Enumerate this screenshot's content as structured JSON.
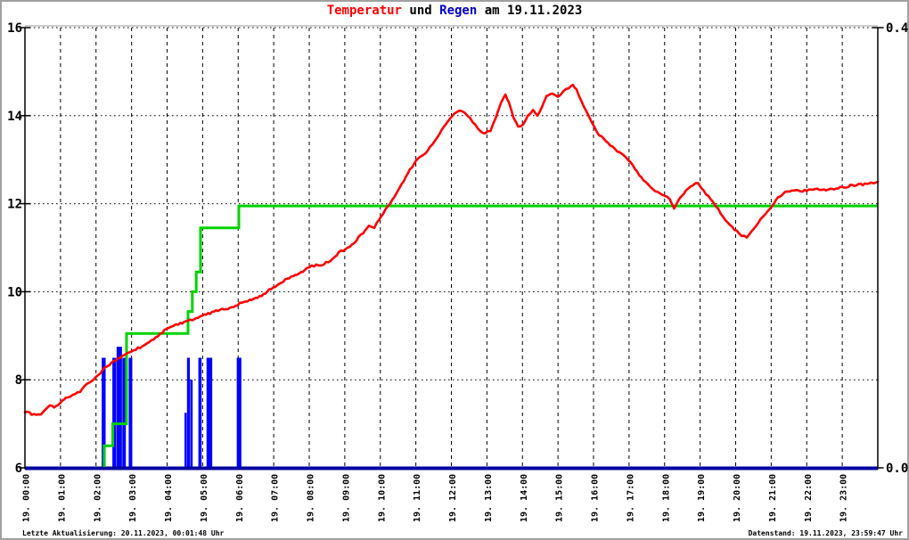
{
  "title_parts": [
    {
      "text": "Temperatur",
      "color": "#ff0000"
    },
    {
      "text": " und ",
      "color": "#000000"
    },
    {
      "text": "Regen",
      "color": "#0000cc"
    },
    {
      "text": " am 19.11.2023",
      "color": "#000000"
    }
  ],
  "footer": {
    "left": "Letzte Aktualisierung: 20.11.2023, 00:01:48 Uhr",
    "right": "Datenstand: 19.11.2023, 23:59:47 Uhr"
  },
  "chart_data": {
    "type": "line",
    "title": "Temperatur und Regen am 19.11.2023",
    "grid": true,
    "left_axis": {
      "range": [
        6,
        16
      ],
      "ticks": [
        {
          "label": "16",
          "value": 16
        },
        {
          "label": "14",
          "value": 14
        },
        {
          "label": "12",
          "value": 12
        },
        {
          "label": "10",
          "value": 10
        },
        {
          "label": "8",
          "value": 8
        },
        {
          "label": "6",
          "value": 6
        }
      ]
    },
    "right_axis": {
      "range": [
        0.0,
        0.4
      ],
      "ticks": [
        {
          "label": "0.4",
          "value": 0.4
        },
        {
          "label": "0.0",
          "value": 0.0
        }
      ]
    },
    "x_axis": {
      "range_hours": [
        0,
        24
      ],
      "tick_labels": [
        "19. 00:00",
        "19. 01:00",
        "19. 02:00",
        "19. 03:00",
        "19. 04:00",
        "19. 05:00",
        "19. 06:00",
        "19. 07:00",
        "19. 08:00",
        "19. 09:00",
        "19. 10:00",
        "19. 11:00",
        "19. 12:00",
        "19. 13:00",
        "19. 14:00",
        "19. 15:00",
        "19. 16:00",
        "19. 17:00",
        "19. 18:00",
        "19. 19:00",
        "19. 20:00",
        "19. 21:00",
        "19. 22:00",
        "19. 23:00"
      ]
    },
    "colors": {
      "temperature": "#ff0000",
      "rain_bars": "#0000ff",
      "rain_sum": "#00d300",
      "baseline": "#0000a0",
      "grid": "#000000",
      "border": "#a0a0a0",
      "top_line": "#b0b0b0"
    },
    "series": {
      "temperature": {
        "axis": "left",
        "points": [
          [
            0,
            7.26
          ],
          [
            0.25,
            7.22
          ],
          [
            0.45,
            7.21
          ],
          [
            0.55,
            7.3
          ],
          [
            0.7,
            7.42
          ],
          [
            0.82,
            7.37
          ],
          [
            1.0,
            7.48
          ],
          [
            1.1,
            7.55
          ],
          [
            1.2,
            7.6
          ],
          [
            1.35,
            7.66
          ],
          [
            1.55,
            7.72
          ],
          [
            1.68,
            7.86
          ],
          [
            1.8,
            7.93
          ],
          [
            1.93,
            8.0
          ],
          [
            2.05,
            8.1
          ],
          [
            2.2,
            8.24
          ],
          [
            2.3,
            8.3
          ],
          [
            2.45,
            8.4
          ],
          [
            2.55,
            8.43
          ],
          [
            2.68,
            8.5
          ],
          [
            2.8,
            8.56
          ],
          [
            2.93,
            8.62
          ],
          [
            3.06,
            8.67
          ],
          [
            3.3,
            8.76
          ],
          [
            3.56,
            8.9
          ],
          [
            3.81,
            9.05
          ],
          [
            4.1,
            9.2
          ],
          [
            4.31,
            9.25
          ],
          [
            4.6,
            9.35
          ],
          [
            4.82,
            9.4
          ],
          [
            5.1,
            9.48
          ],
          [
            5.32,
            9.55
          ],
          [
            5.6,
            9.6
          ],
          [
            5.82,
            9.65
          ],
          [
            6.1,
            9.75
          ],
          [
            6.32,
            9.82
          ],
          [
            6.6,
            9.9
          ],
          [
            6.82,
            10.0
          ],
          [
            7.1,
            10.15
          ],
          [
            7.32,
            10.28
          ],
          [
            7.6,
            10.38
          ],
          [
            7.82,
            10.45
          ],
          [
            8.0,
            10.55
          ],
          [
            8.2,
            10.62
          ],
          [
            8.35,
            10.6
          ],
          [
            8.6,
            10.7
          ],
          [
            8.83,
            10.9
          ],
          [
            9.08,
            11.0
          ],
          [
            9.33,
            11.16
          ],
          [
            9.45,
            11.3
          ],
          [
            9.58,
            11.4
          ],
          [
            9.68,
            11.5
          ],
          [
            9.83,
            11.45
          ],
          [
            9.96,
            11.63
          ],
          [
            10.08,
            11.77
          ],
          [
            10.21,
            11.94
          ],
          [
            10.33,
            12.08
          ],
          [
            10.6,
            12.45
          ],
          [
            10.83,
            12.78
          ],
          [
            11.08,
            13.04
          ],
          [
            11.33,
            13.2
          ],
          [
            11.6,
            13.5
          ],
          [
            11.84,
            13.8
          ],
          [
            12.0,
            13.97
          ],
          [
            12.15,
            14.08
          ],
          [
            12.3,
            14.1
          ],
          [
            12.45,
            14.0
          ],
          [
            12.6,
            13.85
          ],
          [
            12.75,
            13.7
          ],
          [
            12.95,
            13.6
          ],
          [
            13.1,
            13.65
          ],
          [
            13.25,
            13.95
          ],
          [
            13.4,
            14.3
          ],
          [
            13.52,
            14.48
          ],
          [
            13.62,
            14.3
          ],
          [
            13.75,
            13.95
          ],
          [
            13.88,
            13.75
          ],
          [
            14.02,
            13.8
          ],
          [
            14.15,
            14.0
          ],
          [
            14.3,
            14.13
          ],
          [
            14.42,
            14.0
          ],
          [
            14.55,
            14.2
          ],
          [
            14.68,
            14.45
          ],
          [
            14.85,
            14.5
          ],
          [
            15.0,
            14.43
          ],
          [
            15.15,
            14.55
          ],
          [
            15.3,
            14.62
          ],
          [
            15.42,
            14.7
          ],
          [
            15.52,
            14.6
          ],
          [
            15.65,
            14.35
          ],
          [
            15.8,
            14.1
          ],
          [
            15.95,
            13.85
          ],
          [
            16.1,
            13.62
          ],
          [
            16.35,
            13.42
          ],
          [
            16.6,
            13.25
          ],
          [
            16.85,
            13.1
          ],
          [
            17.1,
            12.88
          ],
          [
            17.35,
            12.6
          ],
          [
            17.6,
            12.38
          ],
          [
            17.8,
            12.27
          ],
          [
            18.0,
            12.18
          ],
          [
            18.15,
            12.1
          ],
          [
            18.27,
            11.89
          ],
          [
            18.42,
            12.12
          ],
          [
            18.6,
            12.3
          ],
          [
            18.8,
            12.42
          ],
          [
            18.94,
            12.47
          ],
          [
            19.1,
            12.3
          ],
          [
            19.3,
            12.1
          ],
          [
            19.44,
            11.94
          ],
          [
            19.65,
            11.7
          ],
          [
            19.9,
            11.48
          ],
          [
            20.1,
            11.32
          ],
          [
            20.31,
            11.23
          ],
          [
            20.5,
            11.42
          ],
          [
            20.7,
            11.65
          ],
          [
            20.9,
            11.83
          ],
          [
            21.01,
            11.93
          ],
          [
            21.2,
            12.15
          ],
          [
            21.45,
            12.28
          ],
          [
            21.7,
            12.31
          ],
          [
            22.0,
            12.29
          ],
          [
            22.3,
            12.34
          ],
          [
            22.6,
            12.32
          ],
          [
            23.0,
            12.38
          ],
          [
            23.4,
            12.42
          ],
          [
            23.75,
            12.46
          ],
          [
            24.0,
            12.5
          ]
        ]
      },
      "rain_bars": {
        "axis": "right",
        "bars": [
          [
            2.16,
            2.27,
            0.1
          ],
          [
            2.46,
            2.57,
            0.1
          ],
          [
            2.58,
            2.73,
            0.11
          ],
          [
            2.74,
            2.84,
            0.1
          ],
          [
            2.92,
            3.02,
            0.1
          ],
          [
            4.49,
            4.55,
            0.05
          ],
          [
            4.56,
            4.64,
            0.1
          ],
          [
            4.65,
            4.72,
            0.08
          ],
          [
            4.88,
            4.97,
            0.1
          ],
          [
            5.11,
            5.27,
            0.1
          ],
          [
            5.96,
            6.09,
            0.1
          ]
        ]
      },
      "rain_sum": {
        "axis": "right",
        "steps": [
          [
            2.23,
            0.02
          ],
          [
            2.47,
            0.04
          ],
          [
            2.86,
            0.122
          ],
          [
            4.59,
            0.142
          ],
          [
            4.71,
            0.16
          ],
          [
            4.82,
            0.178
          ],
          [
            4.94,
            0.218
          ],
          [
            6.02,
            0.238
          ]
        ],
        "end_hour": 24
      }
    }
  }
}
